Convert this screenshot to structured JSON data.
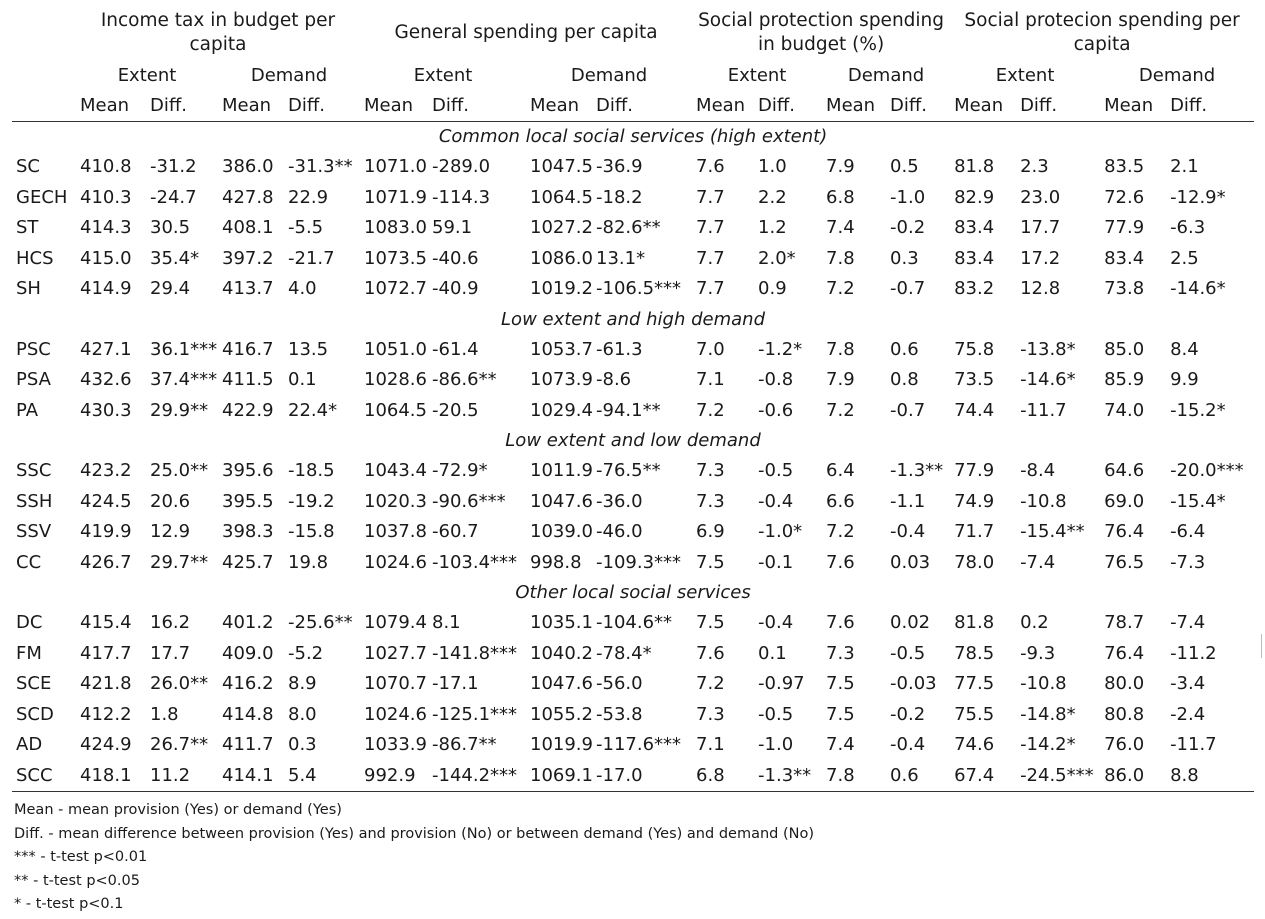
{
  "header": {
    "groups": [
      "Income tax in budget per capita",
      "General spending per capita",
      "Social protection spending in budget (%)",
      "Social protecion spending per capita"
    ],
    "subgroups": [
      "Extent",
      "Demand",
      "Extent",
      "Demand",
      "Extent",
      "Demand",
      "Extent",
      "Demand"
    ],
    "columns": [
      "Mean",
      "Diff.",
      "Mean",
      "Diff.",
      "Mean",
      "Diff.",
      "Mean",
      "Diff.",
      "Mean",
      "Diff.",
      "Mean",
      "Diff.",
      "Mean",
      "Diff.",
      "Mean",
      "Diff."
    ]
  },
  "sections": [
    {
      "title": "Common local social services (high extent)",
      "rows": [
        {
          "label": "SC",
          "cells": [
            "410.8",
            "-31.2",
            "386.0",
            "-31.3**",
            "1071.0",
            "-289.0",
            "1047.5",
            "-36.9",
            "7.6",
            "1.0",
            "7.9",
            "0.5",
            "81.8",
            "2.3",
            "83.5",
            "2.1"
          ]
        },
        {
          "label": "GECH",
          "cells": [
            "410.3",
            "-24.7",
            "427.8",
            "22.9",
            "1071.9",
            "-114.3",
            "1064.5",
            "-18.2",
            "7.7",
            "2.2",
            "6.8",
            "-1.0",
            "82.9",
            "23.0",
            "72.6",
            "-12.9*"
          ]
        },
        {
          "label": "ST",
          "cells": [
            "414.3",
            "30.5",
            "408.1",
            "-5.5",
            "1083.0",
            "59.1",
            "1027.2",
            "-82.6**",
            "7.7",
            "1.2",
            "7.4",
            "-0.2",
            "83.4",
            "17.7",
            "77.9",
            "-6.3"
          ]
        },
        {
          "label": "HCS",
          "cells": [
            "415.0",
            "35.4*",
            "397.2",
            "-21.7",
            "1073.5",
            "-40.6",
            "1086.0",
            "13.1*",
            "7.7",
            "2.0*",
            "7.8",
            "0.3",
            "83.4",
            "17.2",
            "83.4",
            "2.5"
          ]
        },
        {
          "label": "SH",
          "cells": [
            "414.9",
            "29.4",
            "413.7",
            "4.0",
            "1072.7",
            "-40.9",
            "1019.2",
            "-106.5***",
            "7.7",
            "0.9",
            "7.2",
            "-0.7",
            "83.2",
            "12.8",
            "73.8",
            "-14.6*"
          ]
        }
      ]
    },
    {
      "title": "Low extent and high demand",
      "rows": [
        {
          "label": "PSC",
          "cells": [
            "427.1",
            "36.1***",
            "416.7",
            "13.5",
            "1051.0",
            "-61.4",
            "1053.7",
            "-61.3",
            "7.0",
            "-1.2*",
            "7.8",
            "0.6",
            "75.8",
            "-13.8*",
            "85.0",
            "8.4"
          ]
        },
        {
          "label": "PSA",
          "cells": [
            "432.6",
            "37.4***",
            "411.5",
            "0.1",
            "1028.6",
            "-86.6**",
            "1073.9",
            "-8.6",
            "7.1",
            "-0.8",
            "7.9",
            "0.8",
            "73.5",
            "-14.6*",
            "85.9",
            "9.9"
          ]
        },
        {
          "label": "PA",
          "cells": [
            "430.3",
            "29.9**",
            "422.9",
            "22.4*",
            "1064.5",
            "-20.5",
            "1029.4",
            "-94.1**",
            "7.2",
            "-0.6",
            "7.2",
            "-0.7",
            "74.4",
            "-11.7",
            "74.0",
            "-15.2*"
          ]
        }
      ]
    },
    {
      "title": "Low extent and low demand",
      "rows": [
        {
          "label": "SSC",
          "cells": [
            "423.2",
            "25.0**",
            "395.6",
            "-18.5",
            "1043.4",
            "-72.9*",
            "1011.9",
            "-76.5**",
            "7.3",
            "-0.5",
            "6.4",
            "-1.3**",
            "77.9",
            "-8.4",
            "64.6",
            "-20.0***"
          ]
        },
        {
          "label": "SSH",
          "cells": [
            "424.5",
            "20.6",
            "395.5",
            "-19.2",
            "1020.3",
            "-90.6***",
            "1047.6",
            "-36.0",
            "7.3",
            "-0.4",
            "6.6",
            "-1.1",
            "74.9",
            "-10.8",
            "69.0",
            "-15.4*"
          ]
        },
        {
          "label": "SSV",
          "cells": [
            "419.9",
            "12.9",
            "398.3",
            "-15.8",
            "1037.8",
            "-60.7",
            "1039.0",
            "-46.0",
            "6.9",
            "-1.0*",
            "7.2",
            "-0.4",
            "71.7",
            "-15.4**",
            "76.4",
            "-6.4"
          ]
        },
        {
          "label": "CC",
          "cells": [
            "426.7",
            "29.7**",
            "425.7",
            "19.8",
            "1024.6",
            "-103.4***",
            "998.8",
            "-109.3***",
            "7.5",
            "-0.1",
            "7.6",
            "0.03",
            "78.0",
            "-7.4",
            "76.5",
            "-7.3"
          ]
        }
      ]
    },
    {
      "title": "Other local social services",
      "rows": [
        {
          "label": "DC",
          "cells": [
            "415.4",
            "16.2",
            "401.2",
            "-25.6**",
            "1079.4",
            "8.1",
            "1035.1",
            "-104.6**",
            "7.5",
            "-0.4",
            "7.6",
            "0.02",
            "81.8",
            "0.2",
            "78.7",
            "-7.4"
          ]
        },
        {
          "label": "FM",
          "cells": [
            "417.7",
            "17.7",
            "409.0",
            "-5.2",
            "1027.7",
            "-141.8***",
            "1040.2",
            "-78.4*",
            "7.6",
            "0.1",
            "7.3",
            "-0.5",
            "78.5",
            "-9.3",
            "76.4",
            "-11.2"
          ]
        },
        {
          "label": "SCE",
          "cells": [
            "421.8",
            "26.0**",
            "416.2",
            "8.9",
            "1070.7",
            "-17.1",
            "1047.6",
            "-56.0",
            "7.2",
            "-0.97",
            "7.5",
            "-0.03",
            "77.5",
            "-10.8",
            "80.0",
            "-3.4"
          ]
        },
        {
          "label": "SCD",
          "cells": [
            "412.2",
            "1.8",
            "414.8",
            "8.0",
            "1024.6",
            "-125.1***",
            "1055.2",
            "-53.8",
            "7.3",
            "-0.5",
            "7.5",
            "-0.2",
            "75.5",
            "-14.8*",
            "80.8",
            "-2.4"
          ]
        },
        {
          "label": "AD",
          "cells": [
            "424.9",
            "26.7**",
            "411.7",
            "0.3",
            "1033.9",
            "-86.7**",
            "1019.9",
            "-117.6***",
            "7.1",
            "-1.0",
            "7.4",
            "-0.4",
            "74.6",
            "-14.2*",
            "76.0",
            "-11.7"
          ]
        },
        {
          "label": "SCC",
          "cells": [
            "418.1",
            "11.2",
            "414.1",
            "5.4",
            "992.9",
            "-144.2***",
            "1069.1",
            "-17.0",
            "6.8",
            "-1.3**",
            "7.8",
            "0.6",
            "67.4",
            "-24.5***",
            "86.0",
            "8.8"
          ]
        }
      ]
    }
  ],
  "notes": [
    "Mean - mean provision (Yes) or demand (Yes)",
    "Diff. - mean difference between provision (Yes) and provision (No) or between demand (Yes) and demand (No)",
    "*** - t-test p<0.01",
    "** -  t-test p<0.05",
    "* - t-test p<0.1"
  ]
}
